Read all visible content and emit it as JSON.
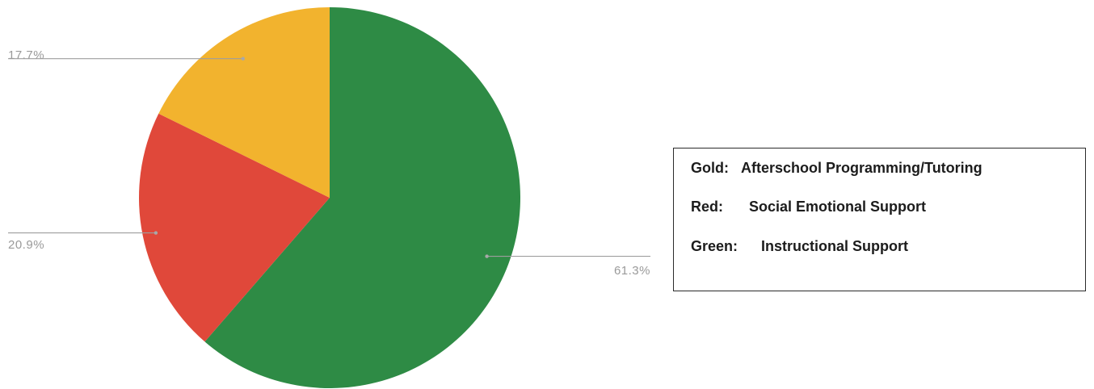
{
  "chart_data": {
    "type": "pie",
    "categories": [
      "Instructional Support",
      "Social Emotional Support",
      "Afterschool Programming/Tutoring"
    ],
    "values": [
      61.3,
      20.9,
      17.7
    ],
    "data_labels": [
      "61.3%",
      "20.9%",
      "17.7%"
    ],
    "colors": [
      "#2e8b45",
      "#e0483a",
      "#f2b32e"
    ],
    "start_angle_deg": 0,
    "direction": "clockwise",
    "legend_position": "right"
  },
  "legend": {
    "items": [
      {
        "label": "Gold:",
        "text": "Afterschool Programming/Tutoring"
      },
      {
        "label": "Red:",
        "text": "Social Emotional Support"
      },
      {
        "label": "Green:",
        "text": "Instructional Support"
      }
    ]
  }
}
